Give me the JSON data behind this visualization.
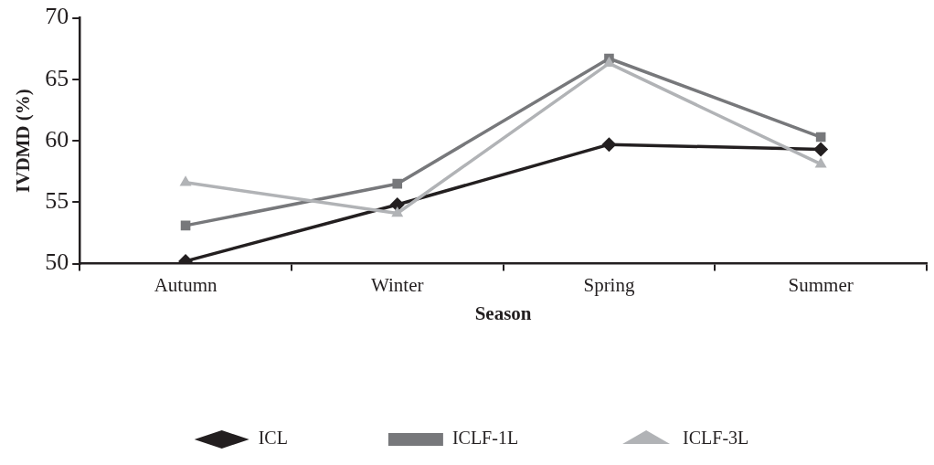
{
  "chart_data": {
    "type": "line",
    "xlabel": "Season",
    "ylabel": "IVDMD (%)",
    "categories": [
      "Autumn",
      "Winter",
      "Spring",
      "Summer"
    ],
    "series": [
      {
        "name": "ICL",
        "color": "#231f20",
        "marker": "diamond",
        "values": [
          50.2,
          54.8,
          59.7,
          59.3
        ]
      },
      {
        "name": "ICLF-1L",
        "color": "#77787b",
        "marker": "square",
        "values": [
          53.1,
          56.5,
          66.7,
          60.3
        ]
      },
      {
        "name": "ICLF-3L",
        "color": "#b1b3b6",
        "marker": "triangle",
        "values": [
          56.6,
          54.1,
          66.3,
          58.1
        ]
      }
    ],
    "ylim": [
      50,
      70
    ],
    "yticks": [
      50,
      55,
      60,
      65,
      70
    ],
    "grid": false,
    "legend": "bottom",
    "line_style": "solid"
  }
}
